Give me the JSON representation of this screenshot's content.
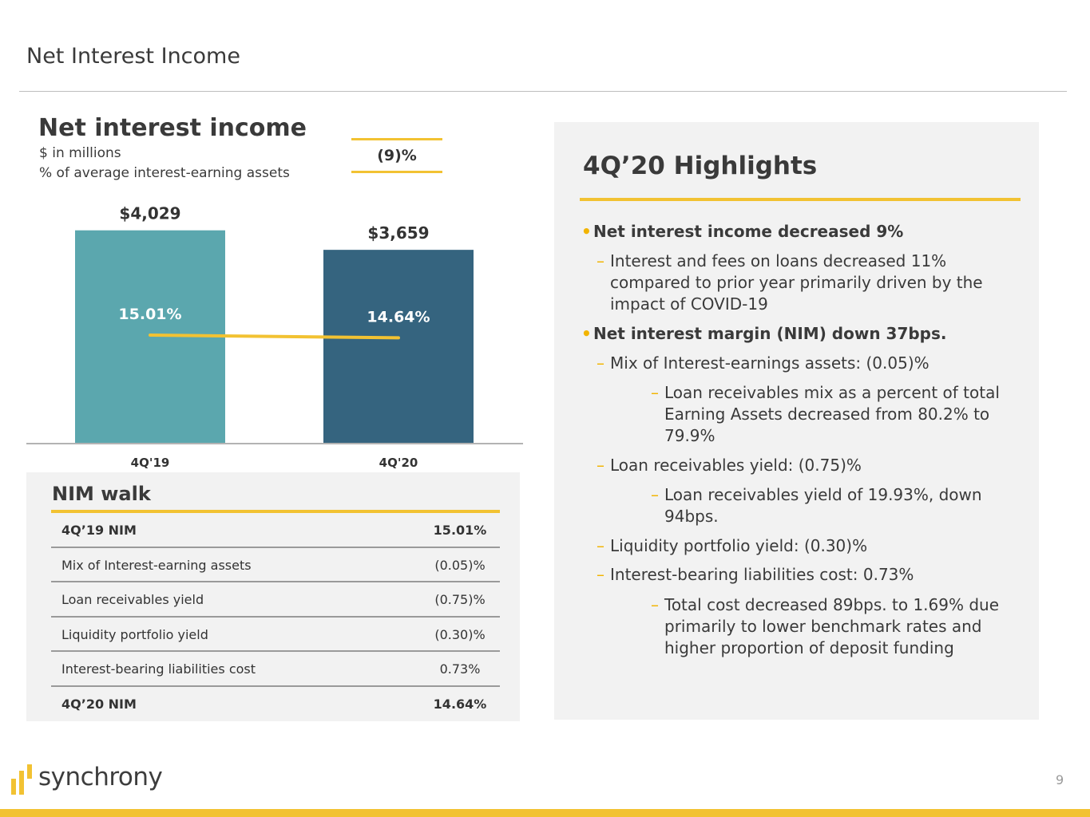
{
  "page": {
    "title": "Net Interest Income",
    "page_number": "9"
  },
  "brand": {
    "name": "synchrony",
    "accent": "#f2c232"
  },
  "chart_panel": {
    "title": "Net interest income",
    "subtitle_1": "$ in millions",
    "subtitle_2": "% of average interest-earning assets",
    "change": "(9)%"
  },
  "chart_data": {
    "type": "bar",
    "categories": [
      "4Q'19",
      "4Q'20"
    ],
    "values": [
      4029,
      3659
    ],
    "value_labels": [
      "$4,029",
      "$3,659"
    ],
    "bar_colors": [
      "#5ba7ae",
      "#35647f"
    ],
    "line": {
      "values": [
        15.01,
        14.64
      ],
      "labels": [
        "15.01%",
        "14.64%"
      ],
      "color": "#f2c232"
    },
    "title": "Net interest income",
    "ylabel": "",
    "xlabel": ""
  },
  "nim_walk": {
    "title": "NIM walk",
    "rows": [
      {
        "label": "4Q’19 NIM",
        "value": "15.01%"
      },
      {
        "label": "Mix of Interest-earning assets",
        "value": "(0.05)%"
      },
      {
        "label": "Loan receivables yield",
        "value": "(0.75)%"
      },
      {
        "label": "Liquidity portfolio yield",
        "value": "(0.30)%"
      },
      {
        "label": "Interest-bearing liabilities cost",
        "value": "0.73%"
      },
      {
        "label": "4Q’20 NIM",
        "value": "14.64%"
      }
    ]
  },
  "highlights": {
    "title": "4Q’20 Highlights",
    "items": [
      {
        "text": "Net interest income decreased 9%",
        "marker": "•"
      },
      {
        "text": "Interest and fees on loans decreased 11% compared to prior year primarily driven by the impact of COVID-19",
        "marker": "–"
      },
      {
        "text": "Net interest margin (NIM) down 37bps.",
        "marker": "•"
      },
      {
        "text": "Mix of Interest-earnings assets: (0.05)%",
        "marker": "–"
      },
      {
        "text": "Loan receivables mix as a percent of total Earning Assets decreased from 80.2% to 79.9%",
        "marker": "–"
      },
      {
        "text": "Loan receivables yield: (0.75)%",
        "marker": "–"
      },
      {
        "text": "Loan receivables yield of 19.93%, down 94bps.",
        "marker": "–"
      },
      {
        "text": "Liquidity portfolio yield: (0.30)%",
        "marker": "–"
      },
      {
        "text": "Interest-bearing liabilities cost: 0.73%",
        "marker": "–"
      },
      {
        "text": "Total cost decreased 89bps. to 1.69% due primarily to lower benchmark rates and higher proportion of deposit funding",
        "marker": "–"
      }
    ]
  }
}
